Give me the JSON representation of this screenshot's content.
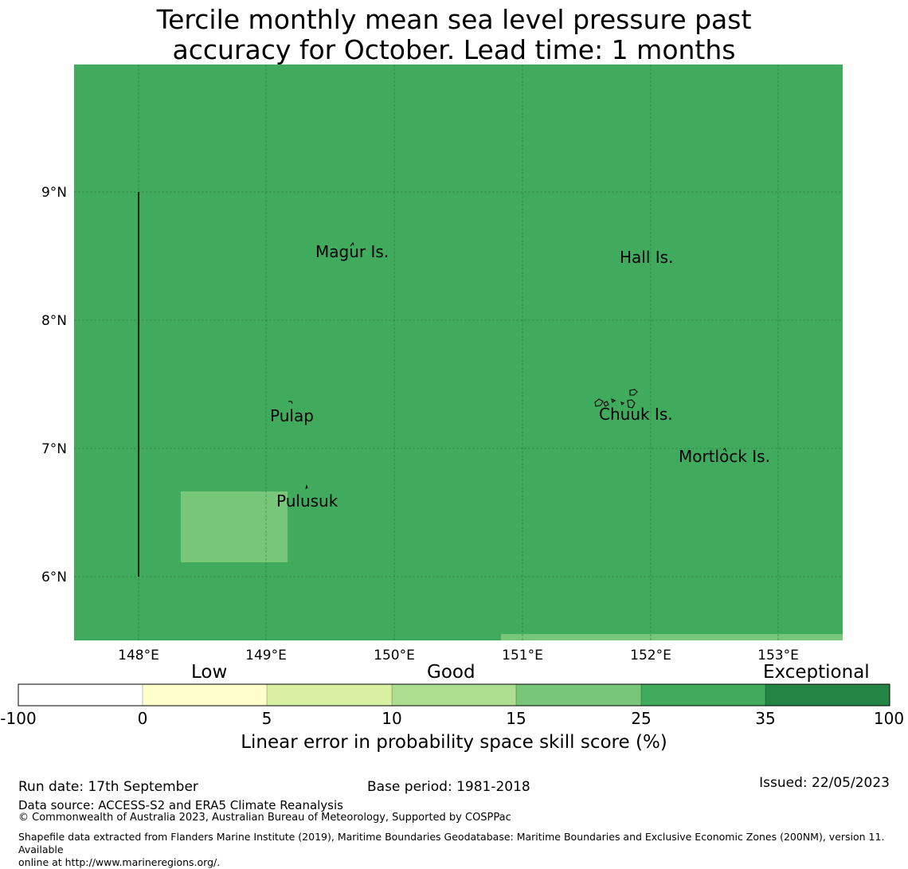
{
  "title": {
    "line1": "Tercile monthly mean sea level pressure past",
    "line2": "accuracy for October. Lead time: 1 months"
  },
  "map": {
    "base_color": "#41ab5d",
    "patch_color": "#78c679",
    "lon_ticks": [
      "148°E",
      "149°E",
      "150°E",
      "151°E",
      "152°E",
      "153°E"
    ],
    "lat_ticks": [
      "9°N",
      "8°N",
      "7°N",
      "6°N"
    ],
    "places": [
      {
        "name": "Magur Is."
      },
      {
        "name": "Hall Is."
      },
      {
        "name": "Pulap"
      },
      {
        "name": "Chuuk Is."
      },
      {
        "name": "Mortlock Is."
      },
      {
        "name": "Pulusuk"
      }
    ]
  },
  "legend": {
    "categories": [
      "Low",
      "Good",
      "Exceptional"
    ],
    "boundaries": [
      "-100",
      "0",
      "5",
      "10",
      "15",
      "25",
      "35",
      "100"
    ],
    "colors": [
      "#ffffff",
      "#ffffcc",
      "#d9f0a3",
      "#addd8e",
      "#78c679",
      "#41ab5d",
      "#238443"
    ],
    "title": "Linear error in probability space skill score (%)"
  },
  "footer": {
    "run_date": "Run date: 17th September",
    "base_period": "Base period: 1981-2018",
    "issued": "Issued: 22/05/2023",
    "data_source": "Data source: ACCESS-S2 and ERA5 Climate Reanalysis",
    "copyright": "© Commonwealth of Australia 2023, Australian Bureau of Meteorology, Supported by COSPPac",
    "shapefile_line1": "Shapefile data extracted from Flanders Marine Institute (2019), Maritime Boundaries Geodatabase: Maritime Boundaries and Exclusive Economic Zones (200NM), version 11. Available",
    "shapefile_line2": "online at http://www.marineregions.org/."
  }
}
